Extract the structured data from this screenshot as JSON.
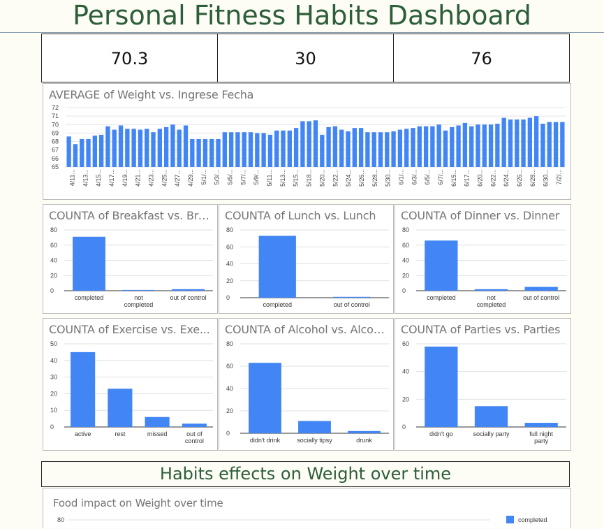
{
  "header": {
    "title": "Personal Fitness Habits Dashboard"
  },
  "kpis": [
    "70.3",
    "30",
    "76"
  ],
  "weight_chart": {
    "title": "AVERAGE of Weight vs. Ingrese Fecha",
    "chart_data": {
      "type": "bar",
      "title": "AVERAGE of Weight vs. Ingrese Fecha",
      "ylim": [
        65,
        72
      ],
      "yticks": [
        65,
        66,
        67,
        68,
        69,
        70,
        71,
        72
      ],
      "grid": true,
      "color": "#4285f4",
      "values": [
        68.6,
        67.7,
        68.3,
        68.3,
        68.7,
        68.8,
        69.8,
        69.4,
        69.9,
        69.5,
        69.5,
        69.4,
        69.5,
        69.1,
        69.5,
        69.7,
        70.0,
        69.4,
        69.9,
        68.3,
        68.3,
        68.3,
        68.3,
        68.3,
        69.1,
        69.1,
        69.1,
        69.1,
        69.1,
        69.0,
        69.0,
        68.8,
        69.3,
        69.3,
        69.3,
        69.6,
        70.4,
        70.4,
        70.5,
        68.8,
        69.7,
        69.8,
        69.4,
        69.2,
        69.6,
        69.6,
        69.1,
        69.1,
        69.1,
        69.1,
        69.2,
        69.4,
        69.5,
        69.6,
        69.8,
        69.8,
        69.8,
        70.0,
        69.3,
        69.7,
        69.9,
        70.2,
        69.8,
        70.0,
        70.0,
        70.0,
        70.1,
        70.8,
        70.6,
        70.6,
        70.6,
        70.8,
        71.0,
        70.1,
        70.3,
        70.3,
        70.3
      ],
      "tick_labels": [
        "4/11...",
        "4/13...",
        "4/15...",
        "4/17...",
        "4/19...",
        "4/21...",
        "4/23...",
        "4/25...",
        "4/27...",
        "4/29...",
        "5/1/...",
        "5/3/...",
        "5/5/...",
        "5/7/...",
        "5/9/...",
        "5/11...",
        "5/13...",
        "5/15...",
        "5/18...",
        "5/20...",
        "5/22...",
        "5/24...",
        "5/26...",
        "5/28...",
        "5/30...",
        "6/1/...",
        "6/3/...",
        "6/5/...",
        "6/7/...",
        "6/15...",
        "6/17...",
        "6/20...",
        "6/22...",
        "6/24...",
        "6/26...",
        "6/28...",
        "6/30...",
        "7/2/..."
      ]
    }
  },
  "habit_charts": [
    {
      "title": "COUNTA of Breakfast vs. Bre...",
      "chart_data": {
        "type": "bar",
        "ylim": [
          0,
          80
        ],
        "yticks": [
          0,
          20,
          40,
          60,
          80
        ],
        "categories": [
          [
            "completed"
          ],
          [
            "not",
            "completed"
          ],
          [
            "out of control"
          ]
        ],
        "values": [
          71,
          1,
          2
        ]
      }
    },
    {
      "title": "COUNTA of Lunch vs. Lunch",
      "chart_data": {
        "type": "bar",
        "ylim": [
          0,
          80
        ],
        "yticks": [
          0,
          20,
          40,
          60,
          80
        ],
        "categories": [
          [
            "completed"
          ],
          [
            "out of control"
          ]
        ],
        "values": [
          73,
          1
        ]
      }
    },
    {
      "title": "COUNTA of Dinner vs. Dinner",
      "chart_data": {
        "type": "bar",
        "ylim": [
          0,
          80
        ],
        "yticks": [
          0,
          20,
          40,
          60,
          80
        ],
        "categories": [
          [
            "completed"
          ],
          [
            "not",
            "completed"
          ],
          [
            "out of control"
          ]
        ],
        "values": [
          66,
          2,
          5
        ]
      }
    },
    {
      "title": "COUNTA of Exercise vs. Exe...",
      "chart_data": {
        "type": "bar",
        "ylim": [
          0,
          50
        ],
        "yticks": [
          0,
          10,
          20,
          30,
          40,
          50
        ],
        "categories": [
          [
            "active"
          ],
          [
            "rest"
          ],
          [
            "missed"
          ],
          [
            "out of",
            "control"
          ]
        ],
        "values": [
          45,
          23,
          6,
          2
        ]
      }
    },
    {
      "title": "COUNTA of Alcohol vs. Alcohol",
      "chart_data": {
        "type": "bar",
        "ylim": [
          0,
          80
        ],
        "yticks": [
          0,
          20,
          40,
          60,
          80
        ],
        "categories": [
          [
            "didn't drink"
          ],
          [
            "socially tipsy"
          ],
          [
            "drunk"
          ]
        ],
        "values": [
          63,
          11,
          2
        ]
      }
    },
    {
      "title": "COUNTA of Parties vs. Parties",
      "chart_data": {
        "type": "bar",
        "ylim": [
          0,
          60
        ],
        "yticks": [
          0,
          20,
          40,
          60
        ],
        "categories": [
          [
            "didn't go"
          ],
          [
            "socially party"
          ],
          [
            "full night",
            "party"
          ]
        ],
        "values": [
          58,
          15,
          3
        ]
      }
    }
  ],
  "section": {
    "title": "Habits effects on Weight over time"
  },
  "food_chart": {
    "title": "Food impact on Weight over time",
    "chart_data": {
      "type": "bar",
      "yticks": [
        80
      ],
      "legend": [
        {
          "name": "completed",
          "color": "#4285f4"
        }
      ],
      "legend_position": "top-right"
    }
  }
}
